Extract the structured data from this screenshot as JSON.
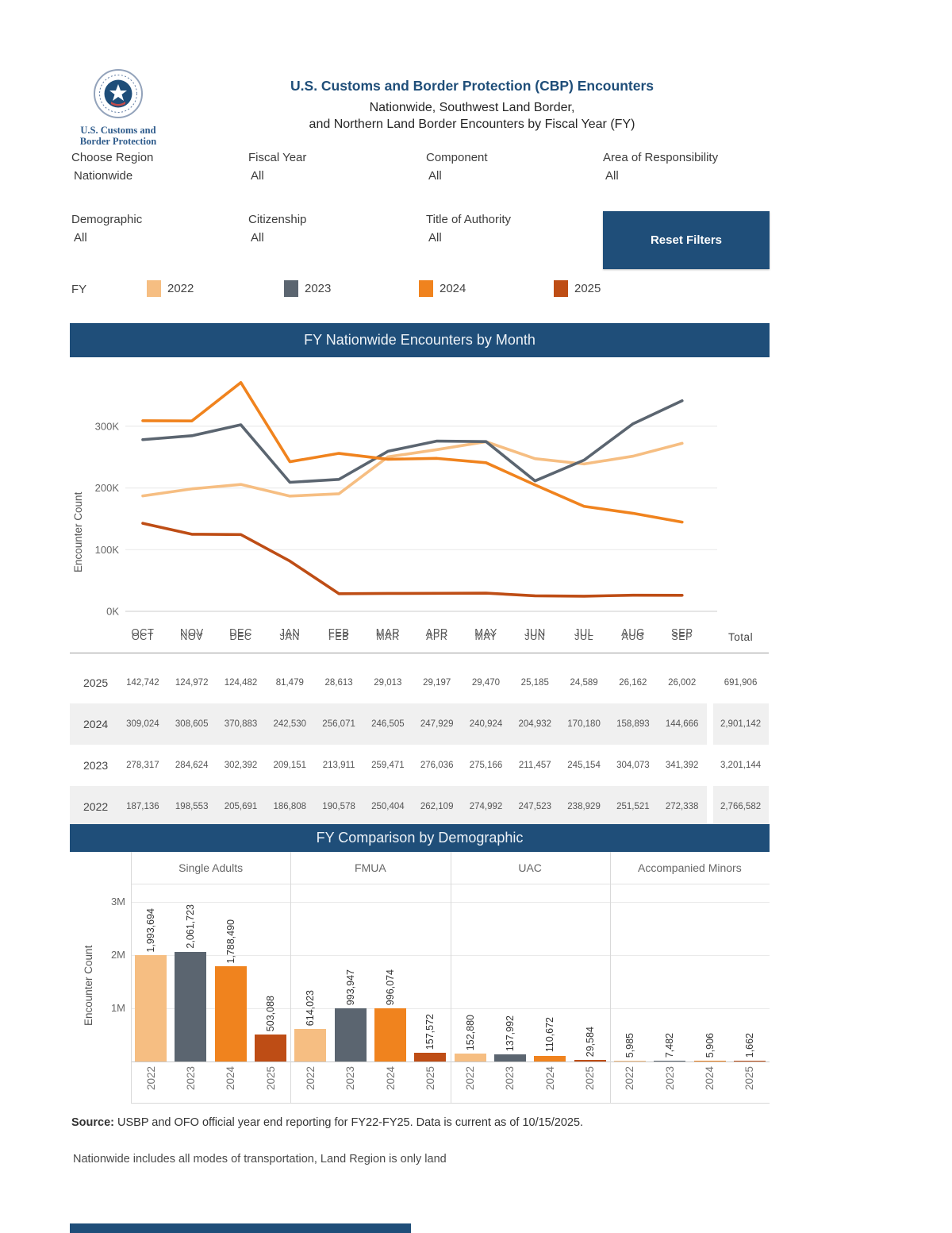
{
  "header": {
    "title": "U.S. Customs and Border Protection (CBP) Encounters",
    "subtitle_line1": "Nationwide, Southwest Land Border,",
    "subtitle_line2": "and Northern Land Border Encounters by Fiscal Year (FY)",
    "logo_line1": "U.S. Customs and",
    "logo_line2": "Border Protection"
  },
  "filters": {
    "row1": [
      {
        "label": "Choose Region",
        "value": "Nationwide"
      },
      {
        "label": "Fiscal Year",
        "value": "All"
      },
      {
        "label": "Component",
        "value": "All"
      },
      {
        "label": "Area of Responsibility",
        "value": "All"
      }
    ],
    "row2": [
      {
        "label": "Demographic",
        "value": "All"
      },
      {
        "label": "Citizenship",
        "value": "All"
      },
      {
        "label": "Title of Authority",
        "value": "All"
      }
    ],
    "reset_label": "Reset Filters"
  },
  "legend": {
    "label": "FY",
    "items": [
      {
        "year": "2022",
        "color": "#F6BE82"
      },
      {
        "year": "2023",
        "color": "#5B6570"
      },
      {
        "year": "2024",
        "color": "#F0831E"
      },
      {
        "year": "2025",
        "color": "#BE4D15"
      }
    ]
  },
  "chart_data": [
    {
      "type": "line",
      "title": "FY Nationwide Encounters by Month",
      "ylabel": "Encounter Count",
      "x": [
        "OCT",
        "NOV",
        "DEC",
        "JAN",
        "FEB",
        "MAR",
        "APR",
        "MAY",
        "JUN",
        "JUL",
        "AUG",
        "SEP"
      ],
      "yticks": [
        {
          "value": 0,
          "label": "0K"
        },
        {
          "value": 100000,
          "label": "100K"
        },
        {
          "value": 200000,
          "label": "200K"
        },
        {
          "value": 300000,
          "label": "300K"
        }
      ],
      "ylim": [
        0,
        380000
      ],
      "grid": true,
      "series": [
        {
          "name": "2022",
          "color": "#F6BE82",
          "values": [
            187136,
            198553,
            205691,
            186808,
            190578,
            250404,
            262109,
            274992,
            247523,
            238929,
            251521,
            272338
          ]
        },
        {
          "name": "2023",
          "color": "#5B6570",
          "values": [
            278317,
            284624,
            302392,
            209151,
            213911,
            259471,
            276036,
            275166,
            211457,
            245154,
            304073,
            341392
          ]
        },
        {
          "name": "2024",
          "color": "#F0831E",
          "values": [
            309024,
            308605,
            370883,
            242530,
            256071,
            246505,
            247929,
            240924,
            204932,
            170180,
            158893,
            144666
          ]
        },
        {
          "name": "2025",
          "color": "#BE4D15",
          "values": [
            142742,
            124972,
            124482,
            81479,
            28613,
            29013,
            29197,
            29470,
            25185,
            24589,
            26162,
            26002
          ]
        }
      ]
    },
    {
      "type": "bar",
      "title": "FY Comparison by Demographic",
      "ylabel": "Encounter Count",
      "yticks": [
        {
          "value": 1000000,
          "label": "1M"
        },
        {
          "value": 2000000,
          "label": "2M"
        },
        {
          "value": 3000000,
          "label": "3M"
        }
      ],
      "ylim": [
        0,
        3343000
      ],
      "categories": [
        "2022",
        "2023",
        "2024",
        "2025"
      ],
      "groups": [
        {
          "name": "Single Adults",
          "values": [
            1993694,
            2061723,
            1788490,
            503088
          ]
        },
        {
          "name": "FMUA",
          "values": [
            614023,
            993947,
            996074,
            157572
          ]
        },
        {
          "name": "UAC",
          "values": [
            152880,
            137992,
            110672,
            29584
          ]
        },
        {
          "name": "Accompanied Minors",
          "values": [
            5985,
            7482,
            5906,
            1662
          ]
        }
      ]
    }
  ],
  "table": {
    "columns": [
      "OCT",
      "NOV",
      "DEC",
      "JAN",
      "FEB",
      "MAR",
      "APR",
      "MAY",
      "JUN",
      "JUL",
      "AUG",
      "SEP"
    ],
    "total_label": "Total",
    "rows": [
      {
        "year": "2025",
        "shaded": false,
        "values": [
          "142,742",
          "124,972",
          "124,482",
          "81,479",
          "28,613",
          "29,013",
          "29,197",
          "29,470",
          "25,185",
          "24,589",
          "26,162",
          "26,002"
        ],
        "total": "691,906"
      },
      {
        "year": "2024",
        "shaded": true,
        "values": [
          "309,024",
          "308,605",
          "370,883",
          "242,530",
          "256,071",
          "246,505",
          "247,929",
          "240,924",
          "204,932",
          "170,180",
          "158,893",
          "144,666"
        ],
        "total": "2,901,142"
      },
      {
        "year": "2023",
        "shaded": false,
        "values": [
          "278,317",
          "284,624",
          "302,392",
          "209,151",
          "213,911",
          "259,471",
          "276,036",
          "275,166",
          "211,457",
          "245,154",
          "304,073",
          "341,392"
        ],
        "total": "3,201,144"
      },
      {
        "year": "2022",
        "shaded": true,
        "values": [
          "187,136",
          "198,553",
          "205,691",
          "186,808",
          "190,578",
          "250,404",
          "262,109",
          "274,992",
          "247,523",
          "238,929",
          "251,521",
          "272,338"
        ],
        "total": "2,766,582"
      }
    ]
  },
  "footer": {
    "source_label": "Source:",
    "source_text": " USBP and OFO official year end reporting for FY22-FY25. Data is current as of 10/15/2025.",
    "note": "Nationwide includes all modes of transportation, Land Region is only land"
  },
  "colors": {
    "header_bar": "#1F4E79",
    "title_text": "#1F4E79"
  }
}
